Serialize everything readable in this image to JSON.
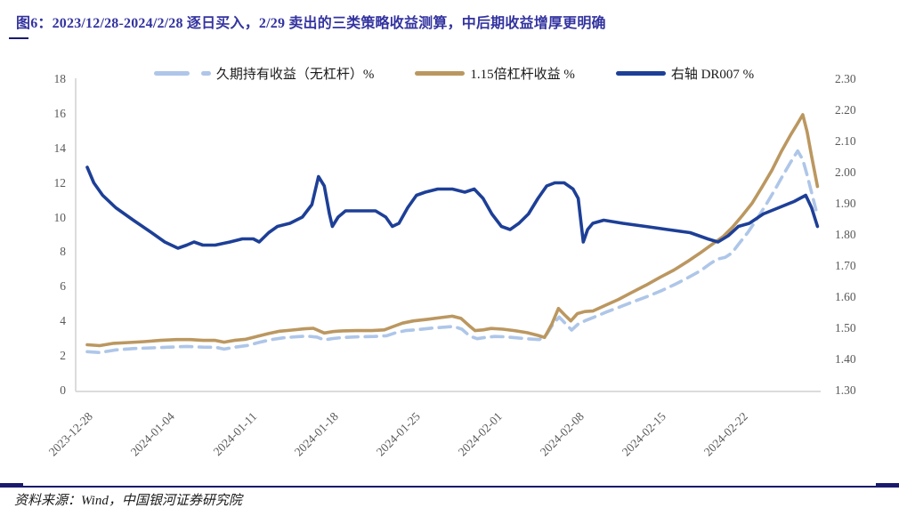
{
  "figure": {
    "title": "图6：2023/12/28-2024/2/28 逐日买入，2/29 卖出的三类策略收益测算，中后期收益增厚更明确",
    "source": "资料来源：Wind，中国银河证券研究院"
  },
  "colors": {
    "title": "#3333a0",
    "rule": "#1a1a6e",
    "axis_text": "#595959",
    "axis_line": "#d0d0d0",
    "light_blue_line": "#aec6e8",
    "gold_line": "#bb9760",
    "navy_line": "#1d3f97"
  },
  "chart_data": {
    "type": "line",
    "title": "三类策略收益测算",
    "x_axis": {
      "labels": [
        "2023-12-28",
        "2024-01-04",
        "2024-01-11",
        "2024-01-18",
        "2024-01-25",
        "2024-02-01",
        "2024-02-08",
        "2024-02-15",
        "2024-02-22"
      ],
      "start": "2023-12-28",
      "end": "2024-02-28"
    },
    "left_axis": {
      "range": [
        0,
        18
      ],
      "ticks": [
        "18",
        "16",
        "14",
        "12",
        "10",
        "8",
        "6",
        "4",
        "2",
        "0"
      ]
    },
    "right_axis": {
      "range": [
        1.3,
        2.3
      ],
      "ticks": [
        "2.30",
        "2.20",
        "2.10",
        "2.00",
        "1.90",
        "1.80",
        "1.70",
        "1.60",
        "1.50",
        "1.40",
        "1.30"
      ]
    },
    "legend": [
      {
        "label": "久期持有收益（无杠杆）%",
        "style": "dashed",
        "color_key": "light_blue_line",
        "axis": "left"
      },
      {
        "label": "1.15倍杠杆收益 %",
        "style": "solid",
        "color_key": "gold_line",
        "axis": "left"
      },
      {
        "label": "右轴 DR007 %",
        "style": "solid",
        "color_key": "navy_line",
        "axis": "right"
      }
    ],
    "series": [
      {
        "name": "久期持有收益（无杠杆）%",
        "axis": "left",
        "style": "dashed",
        "color_key": "light_blue_line",
        "points": [
          [
            0,
            2.3
          ],
          [
            0.017,
            2.25
          ],
          [
            0.039,
            2.4
          ],
          [
            0.063,
            2.48
          ],
          [
            0.088,
            2.52
          ],
          [
            0.112,
            2.56
          ],
          [
            0.136,
            2.6
          ],
          [
            0.158,
            2.56
          ],
          [
            0.176,
            2.55
          ],
          [
            0.187,
            2.45
          ],
          [
            0.202,
            2.56
          ],
          [
            0.219,
            2.66
          ],
          [
            0.236,
            2.85
          ],
          [
            0.252,
            3.0
          ],
          [
            0.268,
            3.1
          ],
          [
            0.285,
            3.16
          ],
          [
            0.3,
            3.2
          ],
          [
            0.314,
            3.14
          ],
          [
            0.324,
            2.98
          ],
          [
            0.336,
            3.06
          ],
          [
            0.35,
            3.12
          ],
          [
            0.37,
            3.16
          ],
          [
            0.392,
            3.18
          ],
          [
            0.409,
            3.22
          ],
          [
            0.422,
            3.4
          ],
          [
            0.435,
            3.52
          ],
          [
            0.453,
            3.58
          ],
          [
            0.471,
            3.66
          ],
          [
            0.489,
            3.72
          ],
          [
            0.501,
            3.76
          ],
          [
            0.512,
            3.6
          ],
          [
            0.523,
            3.2
          ],
          [
            0.533,
            3.05
          ],
          [
            0.544,
            3.12
          ],
          [
            0.557,
            3.18
          ],
          [
            0.572,
            3.16
          ],
          [
            0.586,
            3.1
          ],
          [
            0.603,
            3.04
          ],
          [
            0.618,
            3.0
          ],
          [
            0.628,
            3.3
          ],
          [
            0.636,
            3.85
          ],
          [
            0.645,
            4.3
          ],
          [
            0.653,
            3.95
          ],
          [
            0.662,
            3.55
          ],
          [
            0.671,
            3.9
          ],
          [
            0.681,
            4.1
          ],
          [
            0.693,
            4.3
          ],
          [
            0.71,
            4.6
          ],
          [
            0.729,
            4.9
          ],
          [
            0.747,
            5.2
          ],
          [
            0.766,
            5.5
          ],
          [
            0.786,
            5.85
          ],
          [
            0.804,
            6.2
          ],
          [
            0.822,
            6.6
          ],
          [
            0.839,
            7.0
          ],
          [
            0.852,
            7.4
          ],
          [
            0.861,
            7.65
          ],
          [
            0.872,
            7.75
          ],
          [
            0.881,
            8.0
          ],
          [
            0.89,
            8.5
          ],
          [
            0.903,
            9.2
          ],
          [
            0.915,
            9.95
          ],
          [
            0.927,
            10.75
          ],
          [
            0.939,
            11.6
          ],
          [
            0.951,
            12.5
          ],
          [
            0.962,
            13.3
          ],
          [
            0.971,
            13.9
          ],
          [
            0.978,
            13.4
          ],
          [
            0.984,
            12.5
          ],
          [
            0.99,
            11.5
          ],
          [
            0.996,
            10.5
          ]
        ]
      },
      {
        "name": "1.15倍杠杆收益 %",
        "axis": "left",
        "style": "solid",
        "color_key": "gold_line",
        "points": [
          [
            0,
            2.7
          ],
          [
            0.017,
            2.65
          ],
          [
            0.036,
            2.78
          ],
          [
            0.057,
            2.83
          ],
          [
            0.078,
            2.88
          ],
          [
            0.1,
            2.95
          ],
          [
            0.122,
            3.0
          ],
          [
            0.141,
            3.0
          ],
          [
            0.158,
            2.95
          ],
          [
            0.175,
            2.95
          ],
          [
            0.187,
            2.85
          ],
          [
            0.201,
            2.95
          ],
          [
            0.217,
            3.02
          ],
          [
            0.234,
            3.2
          ],
          [
            0.248,
            3.35
          ],
          [
            0.263,
            3.48
          ],
          [
            0.28,
            3.55
          ],
          [
            0.297,
            3.62
          ],
          [
            0.309,
            3.65
          ],
          [
            0.324,
            3.38
          ],
          [
            0.336,
            3.46
          ],
          [
            0.349,
            3.5
          ],
          [
            0.367,
            3.52
          ],
          [
            0.389,
            3.52
          ],
          [
            0.406,
            3.56
          ],
          [
            0.42,
            3.78
          ],
          [
            0.431,
            3.95
          ],
          [
            0.446,
            4.08
          ],
          [
            0.465,
            4.17
          ],
          [
            0.483,
            4.27
          ],
          [
            0.499,
            4.35
          ],
          [
            0.511,
            4.22
          ],
          [
            0.522,
            3.8
          ],
          [
            0.53,
            3.52
          ],
          [
            0.541,
            3.56
          ],
          [
            0.552,
            3.64
          ],
          [
            0.568,
            3.6
          ],
          [
            0.584,
            3.52
          ],
          [
            0.601,
            3.4
          ],
          [
            0.616,
            3.24
          ],
          [
            0.625,
            3.12
          ],
          [
            0.635,
            3.9
          ],
          [
            0.644,
            4.8
          ],
          [
            0.652,
            4.45
          ],
          [
            0.661,
            4.08
          ],
          [
            0.67,
            4.5
          ],
          [
            0.68,
            4.62
          ],
          [
            0.691,
            4.65
          ],
          [
            0.708,
            4.98
          ],
          [
            0.726,
            5.32
          ],
          [
            0.744,
            5.72
          ],
          [
            0.764,
            6.15
          ],
          [
            0.783,
            6.6
          ],
          [
            0.802,
            7.02
          ],
          [
            0.82,
            7.5
          ],
          [
            0.837,
            7.98
          ],
          [
            0.854,
            8.5
          ],
          [
            0.869,
            8.95
          ],
          [
            0.882,
            9.5
          ],
          [
            0.895,
            10.15
          ],
          [
            0.909,
            10.9
          ],
          [
            0.922,
            11.8
          ],
          [
            0.936,
            12.8
          ],
          [
            0.949,
            13.9
          ],
          [
            0.961,
            14.8
          ],
          [
            0.971,
            15.5
          ],
          [
            0.978,
            16.0
          ],
          [
            0.984,
            15.0
          ],
          [
            0.99,
            13.6
          ],
          [
            0.998,
            11.85
          ]
        ]
      },
      {
        "name": "右轴 DR007 %",
        "axis": "right",
        "style": "solid",
        "color_key": "navy_line",
        "points": [
          [
            0,
            2.02
          ],
          [
            0.009,
            1.97
          ],
          [
            0.021,
            1.93
          ],
          [
            0.039,
            1.89
          ],
          [
            0.063,
            1.85
          ],
          [
            0.088,
            1.81
          ],
          [
            0.106,
            1.78
          ],
          [
            0.124,
            1.76
          ],
          [
            0.136,
            1.77
          ],
          [
            0.146,
            1.78
          ],
          [
            0.158,
            1.77
          ],
          [
            0.175,
            1.77
          ],
          [
            0.195,
            1.78
          ],
          [
            0.212,
            1.79
          ],
          [
            0.227,
            1.79
          ],
          [
            0.235,
            1.78
          ],
          [
            0.248,
            1.81
          ],
          [
            0.26,
            1.83
          ],
          [
            0.277,
            1.84
          ],
          [
            0.294,
            1.86
          ],
          [
            0.307,
            1.9
          ],
          [
            0.316,
            1.99
          ],
          [
            0.324,
            1.96
          ],
          [
            0.331,
            1.87
          ],
          [
            0.335,
            1.83
          ],
          [
            0.343,
            1.86
          ],
          [
            0.353,
            1.88
          ],
          [
            0.373,
            1.88
          ],
          [
            0.394,
            1.88
          ],
          [
            0.408,
            1.86
          ],
          [
            0.417,
            1.83
          ],
          [
            0.426,
            1.84
          ],
          [
            0.438,
            1.89
          ],
          [
            0.45,
            1.93
          ],
          [
            0.462,
            1.94
          ],
          [
            0.479,
            1.95
          ],
          [
            0.499,
            1.95
          ],
          [
            0.516,
            1.94
          ],
          [
            0.529,
            1.95
          ],
          [
            0.541,
            1.92
          ],
          [
            0.553,
            1.87
          ],
          [
            0.566,
            1.83
          ],
          [
            0.578,
            1.82
          ],
          [
            0.59,
            1.84
          ],
          [
            0.603,
            1.87
          ],
          [
            0.616,
            1.92
          ],
          [
            0.628,
            1.96
          ],
          [
            0.639,
            1.97
          ],
          [
            0.652,
            1.97
          ],
          [
            0.664,
            1.95
          ],
          [
            0.671,
            1.92
          ],
          [
            0.678,
            1.78
          ],
          [
            0.684,
            1.82
          ],
          [
            0.691,
            1.84
          ],
          [
            0.706,
            1.85
          ],
          [
            0.732,
            1.84
          ],
          [
            0.763,
            1.83
          ],
          [
            0.793,
            1.82
          ],
          [
            0.824,
            1.81
          ],
          [
            0.848,
            1.79
          ],
          [
            0.862,
            1.78
          ],
          [
            0.876,
            1.8
          ],
          [
            0.89,
            1.83
          ],
          [
            0.905,
            1.84
          ],
          [
            0.924,
            1.87
          ],
          [
            0.945,
            1.89
          ],
          [
            0.966,
            1.91
          ],
          [
            0.982,
            1.93
          ],
          [
            0.99,
            1.89
          ],
          [
            0.998,
            1.83
          ]
        ]
      }
    ],
    "layout": {
      "grid": false,
      "legend_position": "top"
    }
  }
}
